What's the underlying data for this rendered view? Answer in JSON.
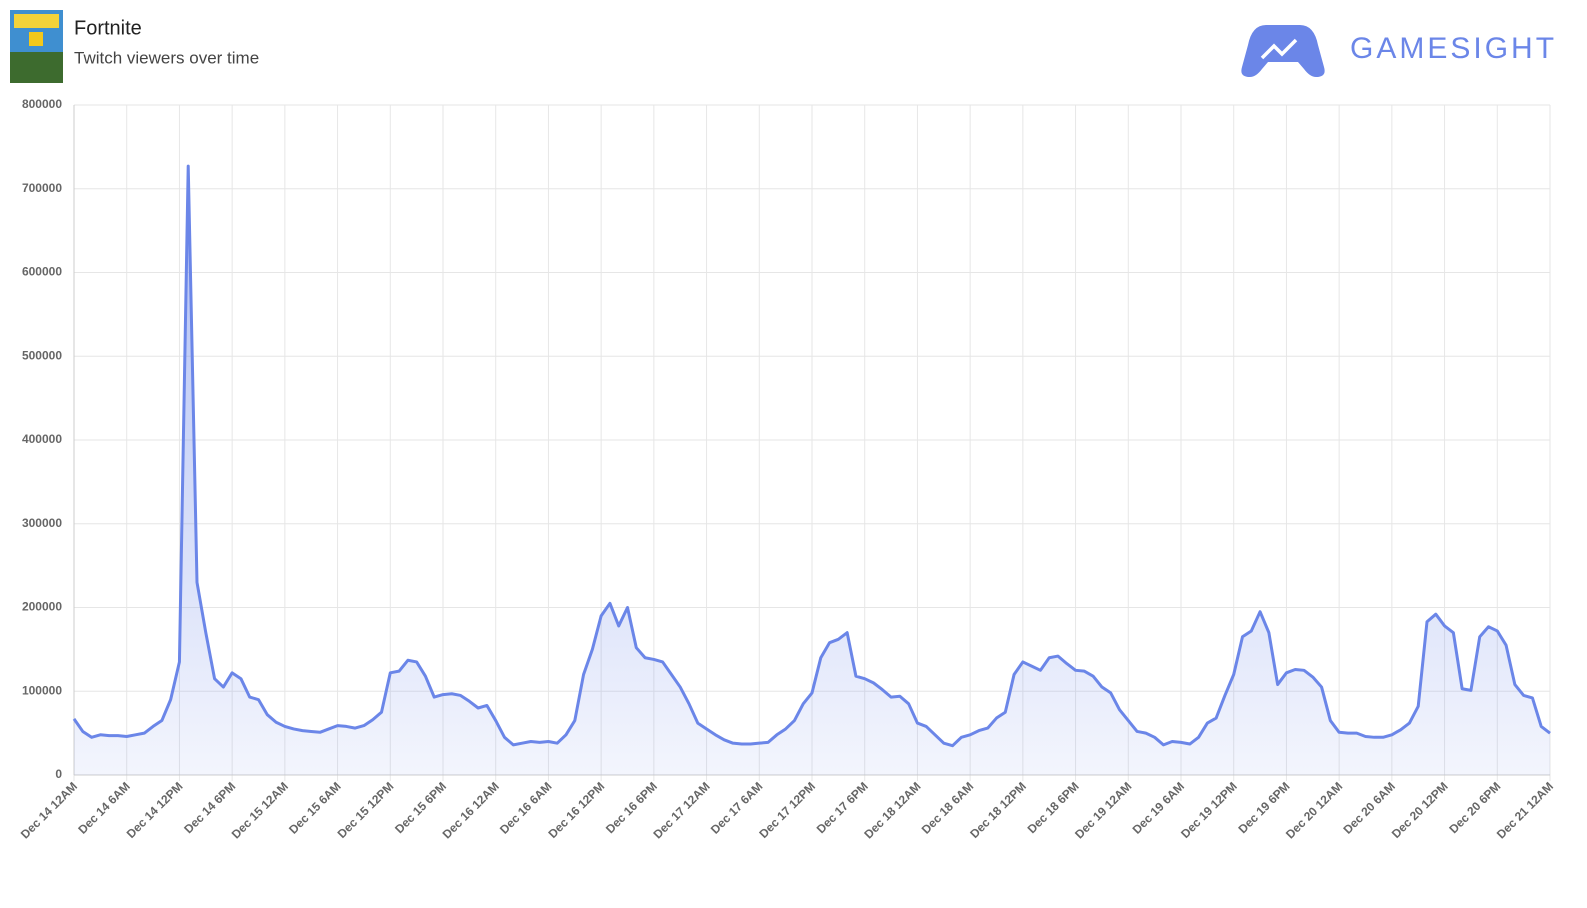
{
  "header": {
    "title": "Fortnite",
    "subtitle": "Twitch viewers over time",
    "brand": "GAMESIGHT"
  },
  "chart_data": {
    "type": "line",
    "categories": [
      "Dec 14 12AM",
      null,
      null,
      null,
      null,
      null,
      "Dec 14 6AM",
      null,
      null,
      null,
      null,
      null,
      "Dec 14 12PM",
      null,
      null,
      null,
      null,
      null,
      "Dec 14 6PM",
      null,
      null,
      null,
      null,
      null,
      "Dec 15 12AM",
      null,
      null,
      null,
      null,
      null,
      "Dec 15 6AM",
      null,
      null,
      null,
      null,
      null,
      "Dec 15 12PM",
      null,
      null,
      null,
      null,
      null,
      "Dec 15 6PM",
      null,
      null,
      null,
      null,
      null,
      "Dec 16 12AM",
      null,
      null,
      null,
      null,
      null,
      "Dec 16 6AM",
      null,
      null,
      null,
      null,
      null,
      "Dec 16 12PM",
      null,
      null,
      null,
      null,
      null,
      "Dec 16 6PM",
      null,
      null,
      null,
      null,
      null,
      "Dec 17 12AM",
      null,
      null,
      null,
      null,
      null,
      "Dec 17 6AM",
      null,
      null,
      null,
      null,
      null,
      "Dec 17 12PM",
      null,
      null,
      null,
      null,
      null,
      "Dec 17 6PM",
      null,
      null,
      null,
      null,
      null,
      "Dec 18 12AM",
      null,
      null,
      null,
      null,
      null,
      "Dec 18 6AM",
      null,
      null,
      null,
      null,
      null,
      "Dec 18 12PM",
      null,
      null,
      null,
      null,
      null,
      "Dec 18 6PM",
      null,
      null,
      null,
      null,
      null,
      "Dec 19 12AM",
      null,
      null,
      null,
      null,
      null,
      "Dec 19 6AM",
      null,
      null,
      null,
      null,
      null,
      "Dec 19 12PM",
      null,
      null,
      null,
      null,
      null,
      "Dec 19 6PM",
      null,
      null,
      null,
      null,
      null,
      "Dec 20 12AM",
      null,
      null,
      null,
      null,
      null,
      "Dec 20 6AM",
      null,
      null,
      null,
      null,
      null,
      "Dec 20 12PM",
      null,
      null,
      null,
      null,
      null,
      "Dec 20 6PM",
      null,
      null,
      null,
      null,
      null,
      "Dec 21 12AM"
    ],
    "series": [
      {
        "color": "#6b86e8",
        "values": [
          67000,
          52000,
          45000,
          48000,
          47000,
          47000,
          46000,
          48000,
          50000,
          58000,
          65000,
          90000,
          135000,
          727000,
          230000,
          170000,
          115000,
          105000,
          122000,
          115000,
          93000,
          90000,
          72000,
          63000,
          58000,
          55000,
          53000,
          52000,
          51000,
          55000,
          59000,
          58000,
          56000,
          59000,
          66000,
          75000,
          122000,
          124000,
          137000,
          135000,
          118000,
          93000,
          96000,
          97000,
          95000,
          88000,
          80000,
          83000,
          65000,
          45000,
          36000,
          38000,
          40000,
          39000,
          40000,
          38000,
          48000,
          65000,
          120000,
          150000,
          190000,
          205000,
          178000,
          200000,
          152000,
          140000,
          138000,
          135000,
          120000,
          105000,
          85000,
          62000,
          55000,
          48000,
          42000,
          38000,
          37000,
          37000,
          38000,
          39000,
          48000,
          55000,
          65000,
          85000,
          98000,
          140000,
          158000,
          162000,
          170000,
          118000,
          115000,
          110000,
          102000,
          93000,
          94000,
          85000,
          62000,
          58000,
          48000,
          38000,
          35000,
          45000,
          48000,
          53000,
          56000,
          68000,
          75000,
          120000,
          135000,
          130000,
          125000,
          140000,
          142000,
          133000,
          125000,
          124000,
          118000,
          105000,
          98000,
          78000,
          65000,
          52000,
          50000,
          45000,
          36000,
          40000,
          39000,
          37000,
          45000,
          62000,
          68000,
          95000,
          120000,
          165000,
          172000,
          195000,
          170000,
          108000,
          122000,
          126000,
          125000,
          117000,
          105000,
          65000,
          51000,
          50000,
          50000,
          46000,
          45000,
          45000,
          48000,
          54000,
          62000,
          82000,
          183000,
          192000,
          178000,
          170000,
          103000,
          101000,
          165000,
          177000,
          172000,
          155000,
          108000,
          95000,
          92000,
          58000,
          50000
        ]
      }
    ],
    "ylim": [
      0,
      800000
    ],
    "yticks": [
      0,
      100000,
      200000,
      300000,
      400000,
      500000,
      600000,
      700000,
      800000
    ],
    "grid": true
  }
}
